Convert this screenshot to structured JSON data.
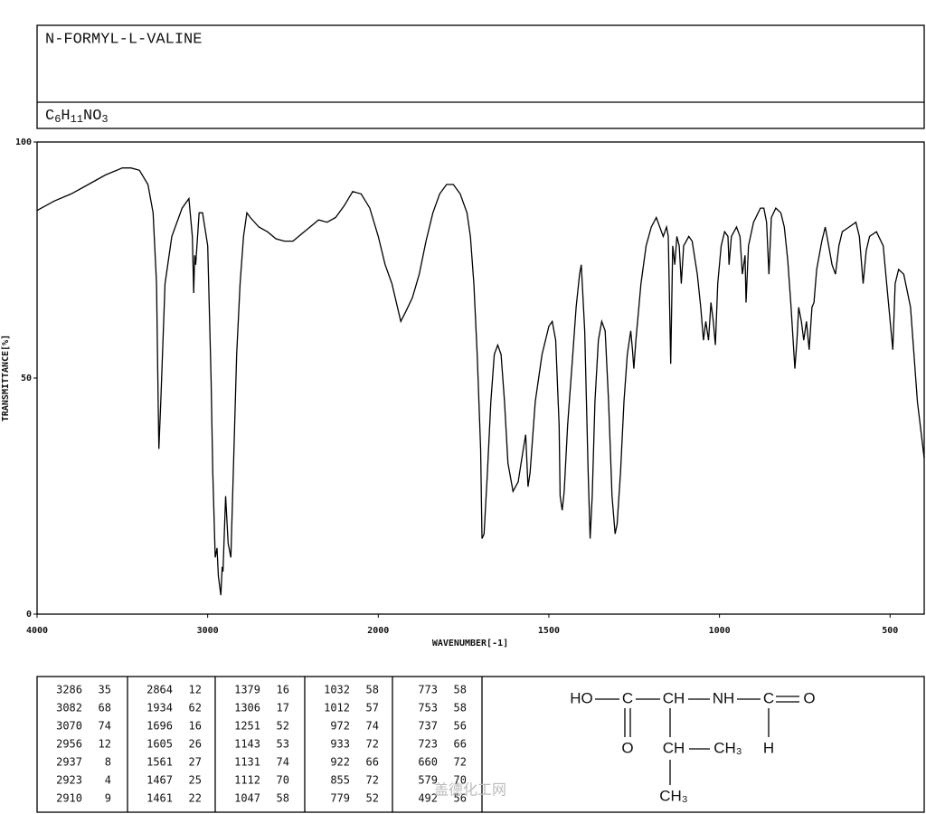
{
  "chart_data": {
    "type": "line",
    "title": "N-FORMYL-L-VALINE",
    "formula": [
      "C",
      "6",
      "H",
      "11",
      "NO",
      "3"
    ],
    "xlabel": "WAVENUMBER[-1]",
    "ylabel": "TRANSMITTANCE[%]",
    "color": "#000000",
    "xlim": [
      4000,
      400
    ],
    "ylim": [
      0,
      100
    ],
    "xticks": [
      4000,
      3000,
      2000,
      1500,
      1000,
      500
    ],
    "yticks": [
      0,
      50,
      100
    ],
    "xscale": {
      "break": 2000,
      "factor": 2
    },
    "x": [
      4000,
      3900,
      3800,
      3700,
      3600,
      3500,
      3450,
      3400,
      3350,
      3320,
      3300,
      3290,
      3286,
      3275,
      3250,
      3210,
      3150,
      3110,
      3090,
      3082,
      3076,
      3070,
      3050,
      3030,
      3000,
      2980,
      2970,
      2956,
      2945,
      2937,
      2923,
      2915,
      2910,
      2895,
      2880,
      2864,
      2850,
      2830,
      2810,
      2790,
      2770,
      2750,
      2700,
      2650,
      2600,
      2550,
      2500,
      2450,
      2400,
      2350,
      2300,
      2250,
      2200,
      2150,
      2100,
      2050,
      2000,
      1980,
      1960,
      1934,
      1920,
      1900,
      1880,
      1860,
      1840,
      1820,
      1800,
      1780,
      1760,
      1740,
      1730,
      1720,
      1710,
      1700,
      1696,
      1690,
      1680,
      1670,
      1660,
      1650,
      1640,
      1630,
      1620,
      1605,
      1590,
      1575,
      1568,
      1561,
      1555,
      1540,
      1520,
      1500,
      1490,
      1480,
      1470,
      1467,
      1461,
      1455,
      1445,
      1430,
      1420,
      1410,
      1405,
      1395,
      1385,
      1379,
      1373,
      1365,
      1355,
      1345,
      1335,
      1325,
      1315,
      1306,
      1300,
      1290,
      1280,
      1270,
      1260,
      1255,
      1251,
      1245,
      1230,
      1215,
      1200,
      1185,
      1175,
      1165,
      1155,
      1150,
      1143,
      1137,
      1131,
      1125,
      1118,
      1112,
      1105,
      1090,
      1080,
      1065,
      1055,
      1047,
      1040,
      1032,
      1025,
      1018,
      1012,
      1005,
      995,
      985,
      975,
      972,
      965,
      950,
      940,
      933,
      925,
      922,
      915,
      900,
      880,
      870,
      862,
      855,
      848,
      835,
      820,
      810,
      800,
      790,
      779,
      773,
      768,
      760,
      753,
      745,
      737,
      729,
      723,
      715,
      700,
      690,
      680,
      670,
      660,
      650,
      640,
      620,
      600,
      590,
      579,
      570,
      560,
      540,
      520,
      510,
      492,
      485,
      475,
      460,
      440,
      420,
      400
    ],
    "values": [
      85.5,
      87.5,
      89,
      91,
      93,
      94.5,
      94.5,
      94,
      91,
      85,
      70,
      45,
      35,
      45,
      70,
      80,
      86,
      88,
      80,
      68,
      76,
      74,
      85,
      85,
      78,
      50,
      30,
      12,
      14,
      8,
      4,
      10,
      9,
      25,
      15,
      12,
      30,
      55,
      70,
      80,
      85,
      84,
      82,
      81,
      79.5,
      79,
      79,
      80.5,
      82,
      83.5,
      83,
      84,
      86.5,
      89.5,
      89,
      86,
      80,
      74,
      70,
      62,
      64,
      67,
      72,
      79,
      85,
      89,
      91,
      91,
      89,
      85,
      80,
      70,
      55,
      35,
      16,
      17,
      30,
      45,
      55,
      57,
      55,
      45,
      32,
      26,
      28,
      35,
      38,
      27,
      30,
      45,
      55,
      61,
      62,
      58,
      40,
      25,
      22,
      26,
      40,
      55,
      65,
      72,
      74,
      60,
      30,
      16,
      25,
      45,
      58,
      62,
      60,
      45,
      25,
      17,
      19,
      30,
      45,
      55,
      60,
      56,
      52,
      58,
      70,
      78,
      82,
      84,
      82,
      80,
      82,
      80,
      53,
      78,
      74,
      80,
      78,
      70,
      78,
      80,
      79,
      72,
      65,
      58,
      62,
      58,
      66,
      62,
      57,
      70,
      78,
      81,
      80,
      74,
      80,
      82,
      80,
      72,
      76,
      66,
      78,
      83,
      86,
      86,
      83,
      72,
      84,
      86,
      85,
      82,
      75,
      65,
      52,
      58,
      65,
      62,
      58,
      62,
      56,
      65,
      66,
      73,
      79,
      82,
      78,
      74,
      72,
      78,
      81,
      82,
      83,
      80,
      70,
      77,
      80,
      81,
      78,
      70,
      56,
      70,
      73,
      72,
      65,
      45,
      33
    ]
  },
  "peak_table": [
    [
      [
        "3286",
        "35"
      ],
      [
        "3082",
        "68"
      ],
      [
        "3070",
        "74"
      ],
      [
        "2956",
        "12"
      ],
      [
        "2937",
        "8"
      ],
      [
        "2923",
        "4"
      ],
      [
        "2910",
        "9"
      ]
    ],
    [
      [
        "2864",
        "12"
      ],
      [
        "1934",
        "62"
      ],
      [
        "1696",
        "16"
      ],
      [
        "1605",
        "26"
      ],
      [
        "1561",
        "27"
      ],
      [
        "1467",
        "25"
      ],
      [
        "1461",
        "22"
      ]
    ],
    [
      [
        "1379",
        "16"
      ],
      [
        "1306",
        "17"
      ],
      [
        "1251",
        "52"
      ],
      [
        "1143",
        "53"
      ],
      [
        "1131",
        "74"
      ],
      [
        "1112",
        "70"
      ],
      [
        "1047",
        "58"
      ]
    ],
    [
      [
        "1032",
        "58"
      ],
      [
        "1012",
        "57"
      ],
      [
        "972",
        "74"
      ],
      [
        "933",
        "72"
      ],
      [
        "922",
        "66"
      ],
      [
        "855",
        "72"
      ],
      [
        "779",
        "52"
      ]
    ],
    [
      [
        "773",
        "58"
      ],
      [
        "753",
        "58"
      ],
      [
        "737",
        "56"
      ],
      [
        "723",
        "66"
      ],
      [
        "660",
        "72"
      ],
      [
        "579",
        "70"
      ],
      [
        "492",
        "56"
      ]
    ]
  ],
  "structure": {
    "atoms": [
      "HO",
      "C",
      "CH",
      "NH",
      "C",
      "O",
      "O",
      "H",
      "CH",
      "CH₃",
      "CH₃"
    ]
  },
  "watermark": "盖德化工网"
}
